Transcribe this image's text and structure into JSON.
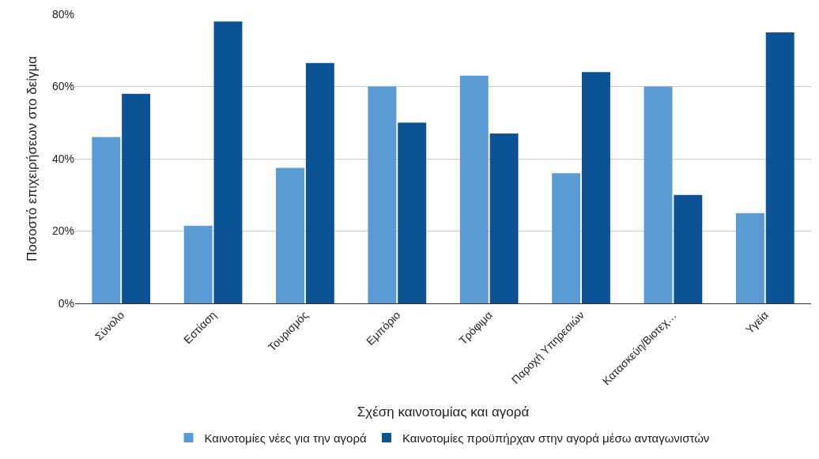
{
  "chart_data": {
    "type": "bar",
    "xlabel": "Σχέση καινοτομίας και αγορά",
    "ylabel": "Ποσοστό επιχειρήσεων στο δείγμα",
    "categories": [
      "Σύνολο",
      "Εστίαση",
      "Τουρισμός",
      "Εμπόριο",
      "Τρόφιμα",
      "Παροχή Υπηρεσιών",
      "Κατασκεύη/Βιοτεχ…",
      "Υγεία"
    ],
    "series": [
      {
        "name": "Καινοτομίες νέες για την αγορά",
        "color": "#5b9bd5",
        "values": [
          46,
          21.5,
          37.5,
          60,
          63,
          36,
          60,
          25
        ]
      },
      {
        "name": "Καινοτομίες προϋπήρχαν στην αγορά μέσω ανταγωνιστών",
        "color": "#0b5394",
        "values": [
          58,
          78,
          66.5,
          50,
          47,
          64,
          30,
          75
        ]
      }
    ],
    "ylim": [
      0,
      80
    ],
    "yticks": [
      {
        "value": 0,
        "label": "0%"
      },
      {
        "value": 20,
        "label": "20%"
      },
      {
        "value": 40,
        "label": "40%"
      },
      {
        "value": 60,
        "label": "60%"
      },
      {
        "value": 80,
        "label": "80%"
      }
    ],
    "grid": "y",
    "legend": "bottom"
  }
}
